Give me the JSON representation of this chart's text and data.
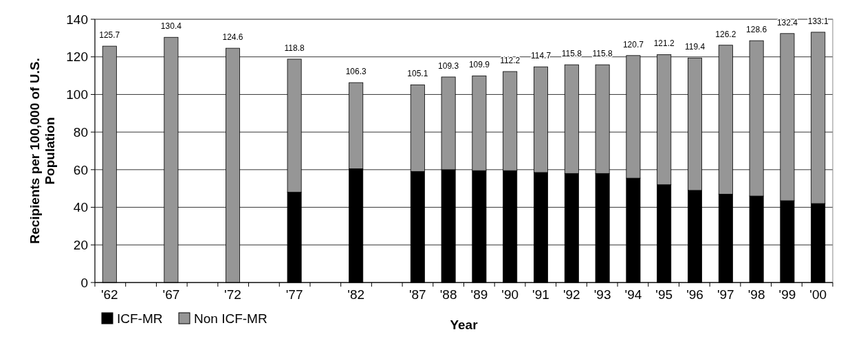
{
  "chart_data": {
    "type": "bar",
    "stacked": true,
    "xlabel": "Year",
    "ylabel": "Recipients per 100,000 of U.S. Population",
    "categories": [
      "'62",
      null,
      "'67",
      null,
      "'72",
      null,
      "'77",
      null,
      "'82",
      null,
      "'87",
      "'88",
      "'89",
      "'90",
      "'91",
      "'92",
      "'93",
      "'94",
      "'95",
      "'96",
      "'97",
      "'98",
      "'99",
      "'00"
    ],
    "series": [
      {
        "name": "ICF-MR",
        "color": "#000000",
        "values": [
          0,
          null,
          0,
          null,
          0,
          null,
          48,
          null,
          60.5,
          null,
          59,
          60,
          59.5,
          59.5,
          58.5,
          58,
          58,
          55.5,
          52,
          49,
          47,
          46,
          43.5,
          42
        ]
      },
      {
        "name": "Non ICF-MR",
        "color": "#969696",
        "values": [
          125.7,
          null,
          130.4,
          null,
          124.6,
          null,
          70.8,
          null,
          45.8,
          null,
          46.1,
          49.3,
          50.4,
          52.7,
          56.2,
          57.8,
          57.8,
          65.2,
          69.2,
          70.4,
          79.2,
          82.6,
          88.9,
          91.1
        ]
      }
    ],
    "totals": [
      "125.7",
      null,
      "130.4",
      null,
      "124.6",
      null,
      "118.8",
      null,
      "106.3",
      null,
      "105.1",
      "109.3",
      "109.9",
      "112.2",
      "114.7",
      "115.8",
      "115.8",
      "120.7",
      "121.2",
      "119.4",
      "126.2",
      "128.6",
      "132.4",
      "133.1"
    ],
    "ylim": [
      0,
      140
    ],
    "yticks": [
      0,
      20,
      40,
      60,
      80,
      100,
      120,
      140
    ],
    "grid": "y",
    "legend": "bottom left"
  }
}
